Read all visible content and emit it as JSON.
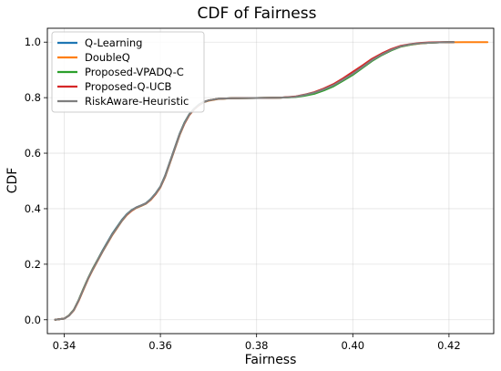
{
  "chart_data": {
    "type": "line",
    "title": "CDF of Fairness",
    "xlabel": "Fairness",
    "ylabel": "CDF",
    "xlim": [
      0.3365,
      0.4293
    ],
    "ylim": [
      -0.05,
      1.05
    ],
    "xticks": [
      0.34,
      0.36,
      0.38,
      0.4,
      0.42
    ],
    "xtick_labels": [
      "0.34",
      "0.36",
      "0.38",
      "0.40",
      "0.42"
    ],
    "yticks": [
      0.0,
      0.2,
      0.4,
      0.6,
      0.8,
      1.0
    ],
    "ytick_labels": [
      "0.0",
      "0.2",
      "0.4",
      "0.6",
      "0.8",
      "1.0"
    ],
    "grid": true,
    "legend_position": "top-left",
    "series": [
      {
        "name": "Q-Learning",
        "color": "#1f77b4",
        "x": [
          0.3381,
          0.34,
          0.341,
          0.342,
          0.343,
          0.344,
          0.345,
          0.346,
          0.348,
          0.35,
          0.352,
          0.353,
          0.354,
          0.355,
          0.356,
          0.357,
          0.358,
          0.359,
          0.36,
          0.361,
          0.362,
          0.363,
          0.364,
          0.365,
          0.366,
          0.367,
          0.368,
          0.369,
          0.37,
          0.372,
          0.375,
          0.38,
          0.385,
          0.388,
          0.39,
          0.392,
          0.394,
          0.396,
          0.398,
          0.4,
          0.402,
          0.404,
          0.406,
          0.408,
          0.41,
          0.412,
          0.414,
          0.416,
          0.418,
          0.42,
          0.421
        ],
        "y": [
          0.0,
          0.004,
          0.015,
          0.035,
          0.07,
          0.11,
          0.15,
          0.185,
          0.25,
          0.31,
          0.36,
          0.38,
          0.395,
          0.405,
          0.412,
          0.42,
          0.435,
          0.455,
          0.48,
          0.52,
          0.57,
          0.62,
          0.67,
          0.71,
          0.74,
          0.76,
          0.775,
          0.785,
          0.79,
          0.796,
          0.798,
          0.799,
          0.8,
          0.803,
          0.81,
          0.818,
          0.83,
          0.845,
          0.865,
          0.885,
          0.91,
          0.935,
          0.955,
          0.972,
          0.985,
          0.992,
          0.996,
          0.998,
          0.999,
          1.0,
          1.0
        ]
      },
      {
        "name": "DoubleQ",
        "color": "#ff7f0e",
        "x": [
          0.3381,
          0.34,
          0.341,
          0.342,
          0.343,
          0.344,
          0.345,
          0.346,
          0.348,
          0.35,
          0.352,
          0.353,
          0.354,
          0.355,
          0.356,
          0.357,
          0.358,
          0.359,
          0.36,
          0.361,
          0.362,
          0.363,
          0.364,
          0.365,
          0.366,
          0.367,
          0.368,
          0.369,
          0.37,
          0.372,
          0.375,
          0.38,
          0.385,
          0.388,
          0.39,
          0.392,
          0.394,
          0.396,
          0.398,
          0.4,
          0.402,
          0.404,
          0.406,
          0.408,
          0.41,
          0.412,
          0.414,
          0.416,
          0.418,
          0.42,
          0.424,
          0.428
        ],
        "y": [
          0.0,
          0.004,
          0.015,
          0.034,
          0.068,
          0.108,
          0.148,
          0.182,
          0.246,
          0.305,
          0.356,
          0.377,
          0.392,
          0.403,
          0.41,
          0.418,
          0.432,
          0.452,
          0.477,
          0.515,
          0.565,
          0.615,
          0.665,
          0.706,
          0.737,
          0.758,
          0.773,
          0.784,
          0.789,
          0.795,
          0.798,
          0.799,
          0.8,
          0.803,
          0.809,
          0.817,
          0.829,
          0.844,
          0.864,
          0.884,
          0.909,
          0.934,
          0.954,
          0.971,
          0.984,
          0.991,
          0.995,
          0.998,
          0.999,
          0.9995,
          1.0,
          1.0
        ]
      },
      {
        "name": "Proposed-VPADQ-C",
        "color": "#2ca02c",
        "x": [
          0.3381,
          0.34,
          0.341,
          0.342,
          0.343,
          0.344,
          0.345,
          0.346,
          0.348,
          0.35,
          0.352,
          0.353,
          0.354,
          0.355,
          0.356,
          0.357,
          0.358,
          0.359,
          0.36,
          0.361,
          0.362,
          0.363,
          0.364,
          0.365,
          0.366,
          0.367,
          0.368,
          0.369,
          0.37,
          0.372,
          0.375,
          0.38,
          0.385,
          0.388,
          0.39,
          0.392,
          0.394,
          0.396,
          0.398,
          0.4,
          0.402,
          0.404,
          0.406,
          0.408,
          0.41,
          0.412,
          0.414,
          0.416,
          0.418,
          0.42,
          0.421
        ],
        "y": [
          0.0,
          0.004,
          0.016,
          0.036,
          0.071,
          0.112,
          0.151,
          0.186,
          0.248,
          0.308,
          0.358,
          0.379,
          0.394,
          0.404,
          0.411,
          0.419,
          0.434,
          0.454,
          0.479,
          0.518,
          0.568,
          0.618,
          0.668,
          0.709,
          0.739,
          0.759,
          0.774,
          0.784,
          0.79,
          0.796,
          0.798,
          0.799,
          0.8,
          0.802,
          0.807,
          0.814,
          0.826,
          0.841,
          0.861,
          0.882,
          0.907,
          0.932,
          0.953,
          0.97,
          0.984,
          0.991,
          0.996,
          0.998,
          0.999,
          1.0,
          1.0
        ]
      },
      {
        "name": "Proposed-Q-UCB",
        "color": "#d62728",
        "x": [
          0.3381,
          0.34,
          0.341,
          0.342,
          0.343,
          0.344,
          0.345,
          0.346,
          0.348,
          0.35,
          0.352,
          0.353,
          0.354,
          0.355,
          0.356,
          0.357,
          0.358,
          0.359,
          0.36,
          0.361,
          0.362,
          0.363,
          0.364,
          0.365,
          0.366,
          0.367,
          0.368,
          0.369,
          0.37,
          0.372,
          0.375,
          0.38,
          0.385,
          0.388,
          0.39,
          0.392,
          0.394,
          0.396,
          0.398,
          0.4,
          0.402,
          0.404,
          0.406,
          0.408,
          0.41,
          0.412,
          0.414,
          0.416,
          0.418,
          0.42,
          0.421
        ],
        "y": [
          0.0,
          0.004,
          0.015,
          0.035,
          0.069,
          0.11,
          0.149,
          0.184,
          0.247,
          0.307,
          0.357,
          0.378,
          0.393,
          0.404,
          0.411,
          0.419,
          0.433,
          0.453,
          0.478,
          0.517,
          0.567,
          0.617,
          0.667,
          0.707,
          0.738,
          0.758,
          0.773,
          0.784,
          0.79,
          0.796,
          0.798,
          0.799,
          0.8,
          0.804,
          0.811,
          0.82,
          0.833,
          0.849,
          0.87,
          0.893,
          0.916,
          0.94,
          0.959,
          0.975,
          0.987,
          0.993,
          0.997,
          0.999,
          1.0,
          1.0,
          1.0
        ]
      },
      {
        "name": "RiskAware-Heuristic",
        "color": "#7f7f7f",
        "x": [
          0.3381,
          0.34,
          0.341,
          0.342,
          0.343,
          0.344,
          0.345,
          0.346,
          0.348,
          0.35,
          0.352,
          0.353,
          0.354,
          0.355,
          0.356,
          0.357,
          0.358,
          0.359,
          0.36,
          0.361,
          0.362,
          0.363,
          0.364,
          0.365,
          0.366,
          0.367,
          0.368,
          0.369,
          0.37,
          0.372,
          0.375,
          0.38,
          0.385,
          0.388,
          0.39,
          0.392,
          0.394,
          0.396,
          0.398,
          0.4,
          0.402,
          0.404,
          0.406,
          0.408,
          0.41,
          0.412,
          0.414,
          0.416,
          0.418,
          0.42,
          0.421
        ],
        "y": [
          0.0,
          0.004,
          0.015,
          0.035,
          0.07,
          0.11,
          0.15,
          0.184,
          0.247,
          0.307,
          0.357,
          0.379,
          0.394,
          0.404,
          0.411,
          0.419,
          0.434,
          0.454,
          0.479,
          0.517,
          0.567,
          0.617,
          0.667,
          0.708,
          0.739,
          0.759,
          0.774,
          0.784,
          0.79,
          0.796,
          0.798,
          0.799,
          0.8,
          0.803,
          0.81,
          0.818,
          0.83,
          0.845,
          0.865,
          0.886,
          0.91,
          0.935,
          0.955,
          0.972,
          0.985,
          0.992,
          0.996,
          0.998,
          0.999,
          1.0,
          1.0
        ]
      }
    ]
  }
}
